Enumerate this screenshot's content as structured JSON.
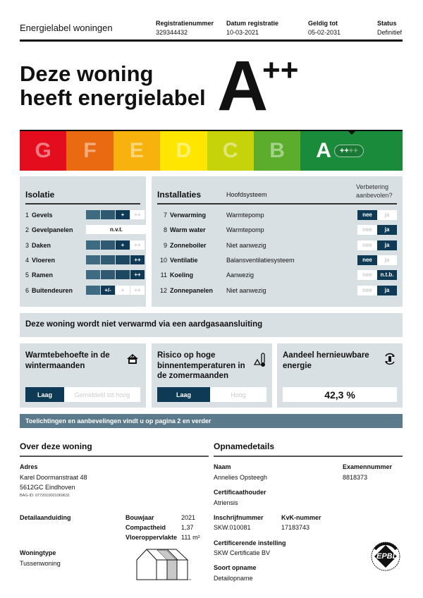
{
  "header": {
    "title": "Energielabel woningen",
    "fields": [
      {
        "label": "Registratienummer",
        "value": "329344432"
      },
      {
        "label": "Datum registratie",
        "value": "10-03-2021"
      },
      {
        "label": "Geldig tot",
        "value": "05-02-2031"
      },
      {
        "label": "Status",
        "value": "Definitief"
      }
    ]
  },
  "headline": {
    "line1": "Deze woning",
    "line2": "heeft energielabel",
    "label": "A",
    "plus": "++"
  },
  "scale": {
    "classes": [
      "G",
      "F",
      "E",
      "D",
      "C",
      "B",
      "A"
    ],
    "active": "A",
    "active_plus_on": "++",
    "active_plus_off": "++",
    "colors": [
      "#e30d1e",
      "#ea6a12",
      "#f8b20d",
      "#ffe600",
      "#c6d30b",
      "#5bad2b",
      "#1a8b3a"
    ]
  },
  "isolatie": {
    "title": "Isolatie",
    "rows": [
      {
        "n": "1",
        "name": "Gevels",
        "level": 3,
        "labels": [
          "",
          "",
          "+",
          "++"
        ]
      },
      {
        "n": "2",
        "name": "Gevelpanelen",
        "text": "n.v.t."
      },
      {
        "n": "3",
        "name": "Daken",
        "level": 3,
        "labels": [
          "",
          "",
          "+",
          "++"
        ]
      },
      {
        "n": "4",
        "name": "Vloeren",
        "level": 4,
        "labels": [
          "",
          "",
          "",
          "++"
        ]
      },
      {
        "n": "5",
        "name": "Ramen",
        "level": 4,
        "labels": [
          "",
          "",
          "",
          "++"
        ]
      },
      {
        "n": "6",
        "name": "Buitendeuren",
        "level": 2,
        "labels": [
          "",
          "+/-",
          "+",
          "++"
        ]
      }
    ]
  },
  "installaties": {
    "title": "Installaties",
    "col_system": "Hoofdsysteem",
    "col_improve": "Verbetering aanbevolen?",
    "no": "nee",
    "rows": [
      {
        "n": "7",
        "name": "Verwarming",
        "system": "Warmtepomp",
        "selected": "nee",
        "alt": "ja"
      },
      {
        "n": "8",
        "name": "Warm water",
        "system": "Warmtepomp",
        "selected": "ja",
        "alt": "ja"
      },
      {
        "n": "9",
        "name": "Zonneboiler",
        "system": "Niet aanwezig",
        "selected": "ja",
        "alt": "ja"
      },
      {
        "n": "10",
        "name": "Ventilatie",
        "system": "Balansventilatiesysteem",
        "selected": "nee",
        "alt": "ja"
      },
      {
        "n": "11",
        "name": "Koeling",
        "system": "Aanwezig",
        "selected": "n.t.b.",
        "alt": "n.t.b."
      },
      {
        "n": "12",
        "name": "Zonnepanelen",
        "system": "Niet aanwezig",
        "selected": "ja",
        "alt": "ja"
      }
    ]
  },
  "gas_notice": "Deze woning wordt niet verwarmd via een aardgasaansluiting",
  "cards": [
    {
      "title": "Warmtebehoefte in de wintermaanden",
      "icon": "house-icon",
      "selected": "Laag",
      "other": "Gemiddeld tot hoog"
    },
    {
      "title": "Risico op hoge binnentemperaturen in de zomermaanden",
      "icon": "thermometer-warning-icon",
      "selected": "Laag",
      "other": "Hoog"
    },
    {
      "title": "Aandeel hernieuwbare energie",
      "icon": "renewable-cycle-icon",
      "value": "42,3 %"
    }
  ],
  "banner": "Toelichtingen en aanbevelingen vindt u op pagina 2 en verder",
  "woning": {
    "title": "Over deze woning",
    "adres_label": "Adres",
    "adres1": "Karel Doormanstraat 48",
    "adres2": "5612GC Eindhoven",
    "bag": "BAG-ID: 0772010001069631",
    "detail_label": "Detailaanduiding",
    "bouwjaar_label": "Bouwjaar",
    "bouwjaar": "2021",
    "compact_label": "Compactheid",
    "compact": "1,37",
    "opp_label": "Vloeroppervlakte",
    "opp": "111 m²",
    "type_label": "Woningtype",
    "type": "Tussenwoning"
  },
  "opname": {
    "title": "Opnamedetails",
    "naam_label": "Naam",
    "naam": "Annelies Opsteegh",
    "exam_label": "Examennummer",
    "exam": "8818373",
    "cert_label": "Certificaathouder",
    "cert": "Atriensis",
    "inschr_label": "Inschrijfnummer",
    "inschr": "SKW.010081",
    "kvk_label": "KvK-nummer",
    "kvk": "17183743",
    "inst_label": "Certificerende instelling",
    "inst": "SKW Certificatie BV",
    "soort_label": "Soort opname",
    "soort": "Detailopname",
    "logo": "EPBD"
  }
}
